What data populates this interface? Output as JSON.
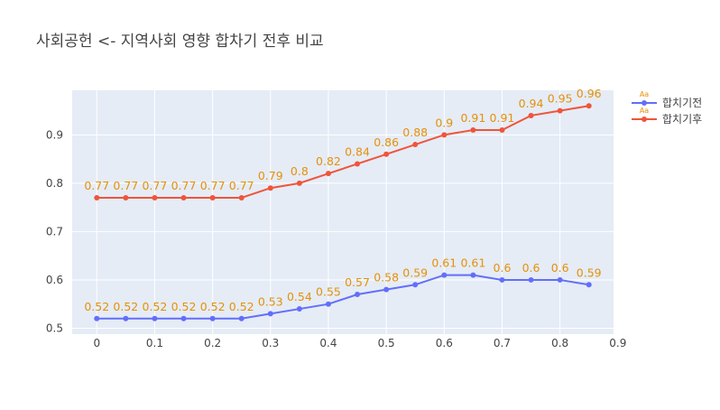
{
  "chart_data": {
    "type": "line",
    "title": "사회공헌 <- 지역사회 영향 합차기 전후 비교",
    "xlabel": "",
    "ylabel": "",
    "x": [
      0,
      0.05,
      0.1,
      0.15,
      0.2,
      0.25,
      0.3,
      0.35,
      0.4,
      0.45,
      0.5,
      0.55,
      0.6,
      0.65,
      0.7,
      0.75,
      0.8,
      0.85
    ],
    "series": [
      {
        "name": "합치기전",
        "color": "#636efa",
        "values": [
          0.52,
          0.52,
          0.52,
          0.52,
          0.52,
          0.52,
          0.53,
          0.54,
          0.55,
          0.57,
          0.58,
          0.59,
          0.61,
          0.61,
          0.6,
          0.6,
          0.6,
          0.59
        ]
      },
      {
        "name": "합치기후",
        "color": "#ef553b",
        "values": [
          0.77,
          0.77,
          0.77,
          0.77,
          0.77,
          0.77,
          0.79,
          0.8,
          0.82,
          0.84,
          0.86,
          0.88,
          0.9,
          0.91,
          0.91,
          0.94,
          0.95,
          0.96
        ]
      }
    ],
    "xticks": [
      "0",
      "0.1",
      "0.2",
      "0.3",
      "0.4",
      "0.5",
      "0.6",
      "0.7",
      "0.8",
      "0.9"
    ],
    "yticks": [
      "0.5",
      "0.6",
      "0.7",
      "0.8",
      "0.9"
    ],
    "xlim": [
      -0.0425,
      0.8925
    ],
    "ylim": [
      0.4878,
      0.9922
    ],
    "grid": true,
    "legend_position": "top-right",
    "legend_marker_label": "Aa",
    "label_color": "#e6900a",
    "plot_bgcolor": "#e5ecf6"
  }
}
